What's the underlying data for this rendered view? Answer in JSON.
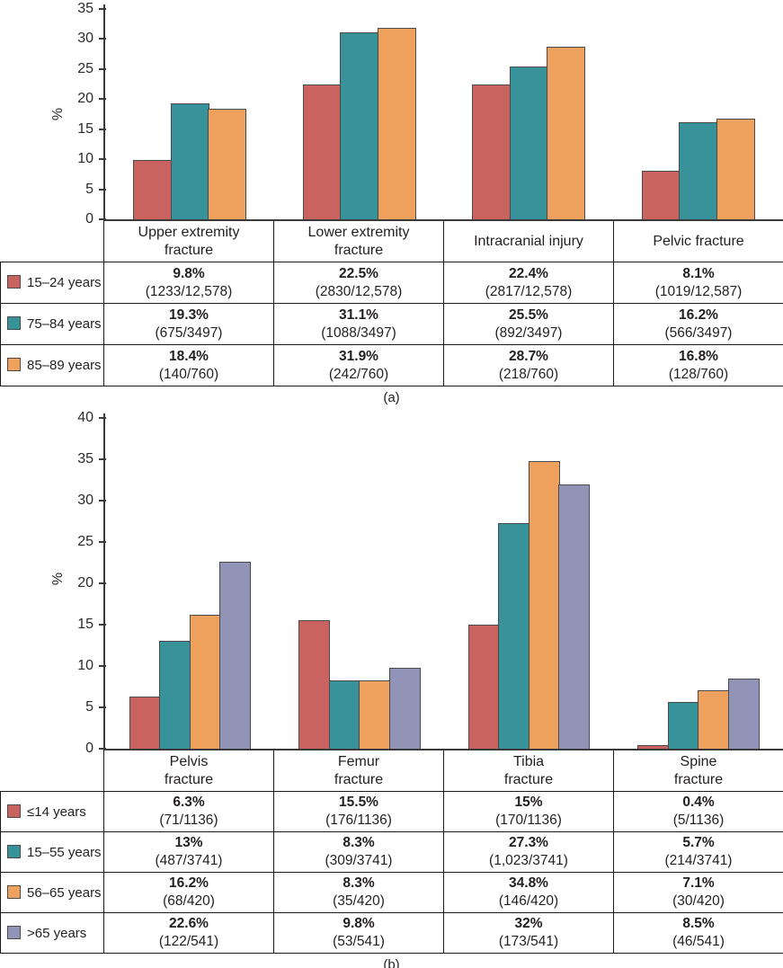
{
  "chart_data": [
    {
      "type": "bar",
      "panel": "(a)",
      "ylabel": "%",
      "ylim": [
        0,
        35
      ],
      "ytick_step": 5,
      "yticks": [
        0,
        5,
        10,
        15,
        20,
        25,
        30,
        35
      ],
      "grid": "off",
      "legend_position": "table-left-column",
      "categories": [
        "Upper extremity fracture",
        "Lower extremity fracture",
        "Intracranial injury",
        "Pelvic fracture"
      ],
      "category_lines": [
        [
          "Upper extremity",
          "fracture"
        ],
        [
          "Lower extremity",
          "fracture"
        ],
        [
          "Intracranial injury"
        ],
        [
          "Pelvic fracture"
        ]
      ],
      "series": [
        {
          "name": "15–24 years",
          "color": "#c8635f",
          "values": [
            9.8,
            22.5,
            22.4,
            8.1
          ],
          "labels": [
            "9.8%",
            "22.5%",
            "22.4%",
            "8.1%"
          ],
          "fractions": [
            "(1233/12,578)",
            "(2830/12,578)",
            "(2817/12,578)",
            "(1019/12,587)"
          ]
        },
        {
          "name": "75–84 years",
          "color": "#38929a",
          "values": [
            19.3,
            31.1,
            25.5,
            16.2
          ],
          "labels": [
            "19.3%",
            "31.1%",
            "25.5%",
            "16.2%"
          ],
          "fractions": [
            "(675/3497)",
            "(1088/3497)",
            "(892/3497)",
            "(566/3497)"
          ]
        },
        {
          "name": "85–89 years",
          "color": "#eda15c",
          "values": [
            18.4,
            31.9,
            28.7,
            16.8
          ],
          "labels": [
            "18.4%",
            "31.9%",
            "28.7%",
            "16.8%"
          ],
          "fractions": [
            "(140/760)",
            "(242/760)",
            "(218/760)",
            "(128/760)"
          ]
        }
      ]
    },
    {
      "type": "bar",
      "panel": "(b)",
      "ylabel": "%",
      "ylim": [
        0,
        40
      ],
      "ytick_step": 5,
      "yticks": [
        0,
        5,
        10,
        15,
        20,
        25,
        30,
        35,
        40
      ],
      "grid": "off",
      "legend_position": "table-left-column",
      "categories": [
        "Pelvis fracture",
        "Femur fracture",
        "Tibia fracture",
        "Spine fracture"
      ],
      "category_lines": [
        [
          "Pelvis",
          "fracture"
        ],
        [
          "Femur",
          "fracture"
        ],
        [
          "Tibia",
          "fracture"
        ],
        [
          "Spine",
          "fracture"
        ]
      ],
      "series": [
        {
          "name": "≤14 years",
          "color": "#c8635f",
          "values": [
            6.3,
            15.5,
            15,
            0.4
          ],
          "labels": [
            "6.3%",
            "15.5%",
            "15%",
            "0.4%"
          ],
          "fractions": [
            "(71/1136)",
            "(176/1136)",
            "(170/1136)",
            "(5/1136)"
          ]
        },
        {
          "name": "15–55 years",
          "color": "#38929a",
          "values": [
            13,
            8.3,
            27.3,
            5.7
          ],
          "labels": [
            "13%",
            "8.3%",
            "27.3%",
            "5.7%"
          ],
          "fractions": [
            "(487/3741)",
            "(309/3741)",
            "(1,023/3741)",
            "(214/3741)"
          ]
        },
        {
          "name": "56–65 years",
          "color": "#eda15c",
          "values": [
            16.2,
            8.3,
            34.8,
            7.1
          ],
          "labels": [
            "16.2%",
            "8.3%",
            "34.8%",
            "7.1%"
          ],
          "fractions": [
            "(68/420)",
            "(35/420)",
            "(146/420)",
            "(30/420)"
          ]
        },
        {
          "name": ">65 years",
          "color": "#9193b7",
          "values": [
            22.6,
            9.8,
            32,
            8.5
          ],
          "labels": [
            "22.6%",
            "9.8%",
            "32%",
            "8.5%"
          ],
          "fractions": [
            "(122/541)",
            "(53/541)",
            "(173/541)",
            "(46/541)"
          ]
        }
      ]
    }
  ]
}
